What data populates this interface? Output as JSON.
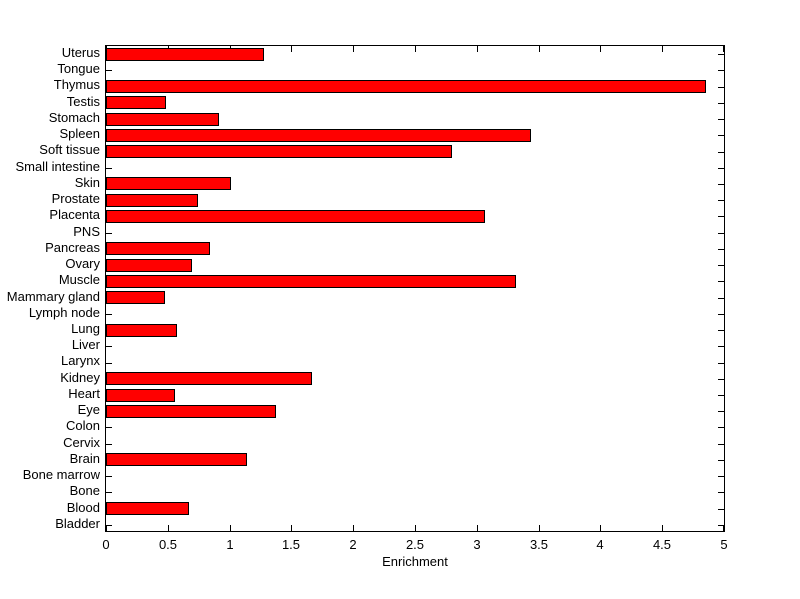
{
  "chart_data": {
    "type": "bar",
    "orientation": "horizontal",
    "title": "",
    "xlabel": "Enrichment",
    "ylabel": "",
    "xlim": [
      0,
      5
    ],
    "grid": false,
    "legend": null,
    "bar_color": "#ff0000",
    "bar_edge_color": "#000000",
    "axis_color": "#000000",
    "background_color": "#ffffff",
    "xtick_values": [
      0,
      0.5,
      1,
      1.5,
      2,
      2.5,
      3,
      3.5,
      4,
      4.5,
      5
    ],
    "xtick_labels": [
      "0",
      "0.5",
      "1",
      "1.5",
      "2",
      "2.5",
      "3",
      "3.5",
      "4",
      "4.5",
      "5"
    ],
    "categories": [
      "Uterus",
      "Tongue",
      "Thymus",
      "Testis",
      "Stomach",
      "Spleen",
      "Soft tissue",
      "Small intestine",
      "Skin",
      "Prostate",
      "Placenta",
      "PNS",
      "Pancreas",
      "Ovary",
      "Muscle",
      "Mammary gland",
      "Lymph node",
      "Lung",
      "Liver",
      "Larynx",
      "Kidney",
      "Heart",
      "Eye",
      "Colon",
      "Cervix",
      "Brain",
      "Bone marrow",
      "Bone",
      "Blood",
      "Bladder"
    ],
    "values": [
      1.27,
      0,
      4.85,
      0.48,
      0.91,
      3.43,
      2.79,
      0,
      1.0,
      0.74,
      3.06,
      0,
      0.83,
      0.69,
      3.31,
      0.47,
      0,
      0.57,
      0,
      0,
      1.66,
      0.55,
      1.37,
      0,
      0,
      1.13,
      0,
      0,
      0.66,
      0
    ]
  }
}
